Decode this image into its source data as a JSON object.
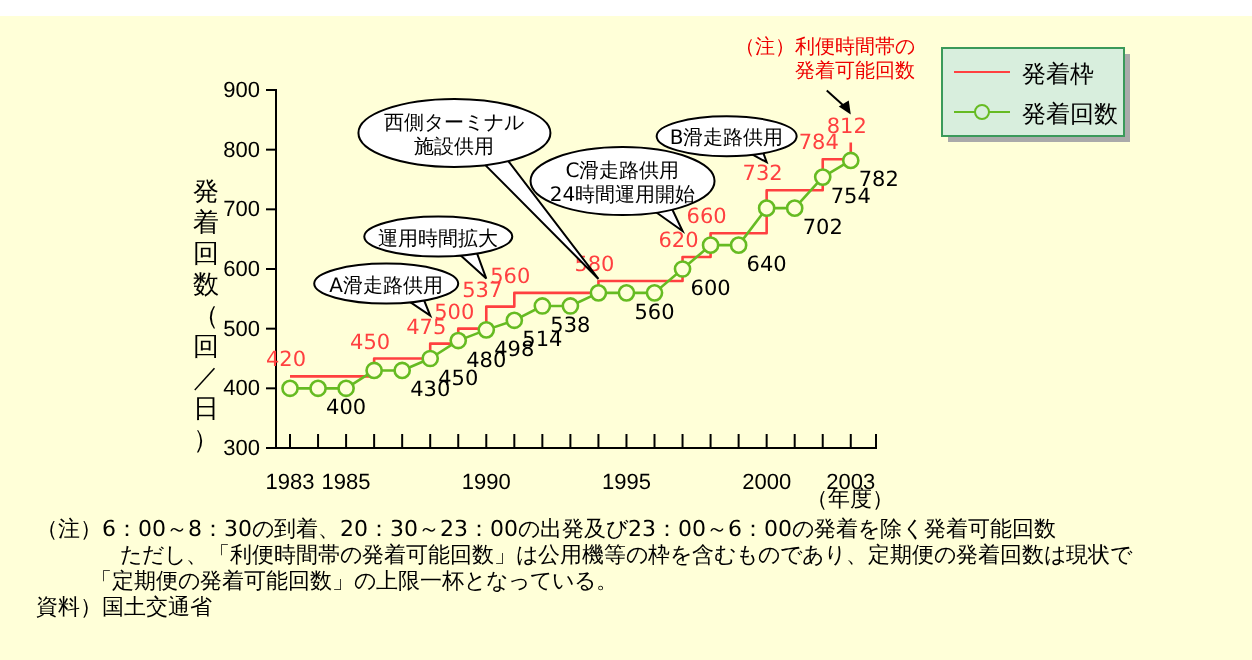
{
  "chart_data": {
    "type": "line",
    "ylabel": "発着回数（回／日）",
    "xlabel": "（年度）",
    "x": [
      1983,
      1984,
      1985,
      1986,
      1987,
      1988,
      1989,
      1990,
      1991,
      1992,
      1993,
      1994,
      1995,
      1996,
      1997,
      1998,
      1999,
      2000,
      2001,
      2002,
      2003
    ],
    "xlim": [
      1982.5,
      2003.9
    ],
    "ylim": [
      300,
      900
    ],
    "xticks": [
      1983,
      {
        "value": 1984,
        "label": null
      },
      1985,
      {
        "value": 1986,
        "label": null
      },
      {
        "value": 1987,
        "label": null
      },
      {
        "value": 1988,
        "label": null
      },
      {
        "value": 1989,
        "label": null
      },
      1990,
      {
        "value": 1991,
        "label": null
      },
      {
        "value": 1992,
        "label": null
      },
      {
        "value": 1993,
        "label": null
      },
      {
        "value": 1994,
        "label": null
      },
      1995,
      {
        "value": 1996,
        "label": null
      },
      {
        "value": 1997,
        "label": null
      },
      {
        "value": 1998,
        "label": null
      },
      {
        "value": 1999,
        "label": null
      },
      2000,
      {
        "value": 2001,
        "label": null
      },
      {
        "value": 2002,
        "label": null
      },
      2003
    ],
    "yticks": [
      300,
      400,
      500,
      600,
      700,
      800,
      900
    ],
    "series": [
      {
        "name": "発着枠",
        "type": "step",
        "color": "#ff4040",
        "values": [
          420,
          420,
          420,
          450,
          450,
          475,
          500,
          537,
          560,
          560,
          560,
          580,
          580,
          580,
          620,
          660,
          660,
          732,
          732,
          784,
          812
        ],
        "value_labels": [
          "420",
          null,
          null,
          "450",
          null,
          "475",
          "500",
          "537",
          "560",
          null,
          null,
          "580",
          null,
          null,
          "620",
          "660",
          null,
          "732",
          null,
          "784",
          "812"
        ]
      },
      {
        "name": "発着回数",
        "type": "line",
        "color": "#66bb22",
        "marker": "circle",
        "values": [
          400,
          400,
          400,
          430,
          430,
          450,
          480,
          498,
          514,
          538,
          538,
          560,
          560,
          560,
          600,
          640,
          640,
          702,
          702,
          754,
          782
        ],
        "value_labels": [
          null,
          "400",
          null,
          null,
          "430",
          "450",
          "480",
          "498",
          "514",
          "538",
          null,
          null,
          "560",
          null,
          "600",
          null,
          "640",
          null,
          "702",
          "754",
          "782"
        ]
      }
    ],
    "legend": "top right",
    "annotations": [
      {
        "text": "A滑走路供用",
        "x": 1988,
        "y": 475
      },
      {
        "text": "運用時間拡大",
        "x": 1990,
        "y": 537
      },
      "西側ターミナル施設供用",
      {
        "text": "C滑走路供用24時間運用開始",
        "x": 1997,
        "y": 620
      },
      {
        "text": "B滑走路供用",
        "x": 2000,
        "y": 732
      },
      "（注）利便時間帯の発着可能回数",
      "（注）6：00～8：30の到着、20：30～23：00の出発及び23：00～6：00の発着を除く発着可能回数",
      "ただし、「利便時間帯の発着可能回数」は公用機等の枠を含むものであり、定期便の発着回数は現状で「定期便の発着可能回数」の上限一杯となっている。",
      "資料）国土交通省"
    ]
  }
}
